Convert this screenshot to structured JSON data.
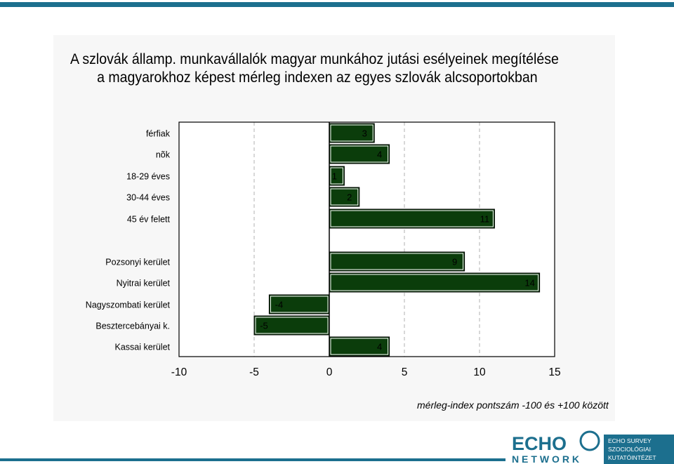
{
  "title_line1": "A szlovák államp. munkavállalók magyar munkához jutási esélyeinek megítélése",
  "title_line2": "a magyarokhoz képest mérleg indexen az egyes szlovák alcsoportokban",
  "note": "mérleg-index pontszám -100 és +100 között",
  "colors": {
    "bar": "#0b3d0b",
    "top_bar": "#1c6f8e",
    "logo_panel": "#1c6f8e"
  },
  "chart_data": {
    "type": "bar",
    "orientation": "horizontal",
    "categories": [
      "férfiak",
      "nõk",
      "18-29 éves",
      "30-44 éves",
      "45 év felett",
      "Pozsonyi kerület",
      "Nyitrai kerület",
      "Nagyszombati kerület",
      "Besztercebányai k.",
      "Kassai kerület"
    ],
    "groups": [
      [
        0,
        1,
        2,
        3,
        4
      ],
      [
        5,
        6,
        7,
        8,
        9
      ]
    ],
    "values": [
      3,
      4,
      1,
      2,
      11,
      9,
      14,
      -4,
      -5,
      4
    ],
    "xlim": [
      -10,
      15
    ],
    "xticks": [
      -10,
      -5,
      0,
      5,
      10,
      15
    ],
    "grid": "vertical dashed",
    "data_labels": true
  },
  "logo": {
    "wordmark_top": "ECHO",
    "wordmark_bottom": "NETWORK",
    "panel_lines": [
      "ECHO SURVEY",
      "SZOCIOLÓGIAI",
      "KUTATÓINTÉZET"
    ]
  }
}
